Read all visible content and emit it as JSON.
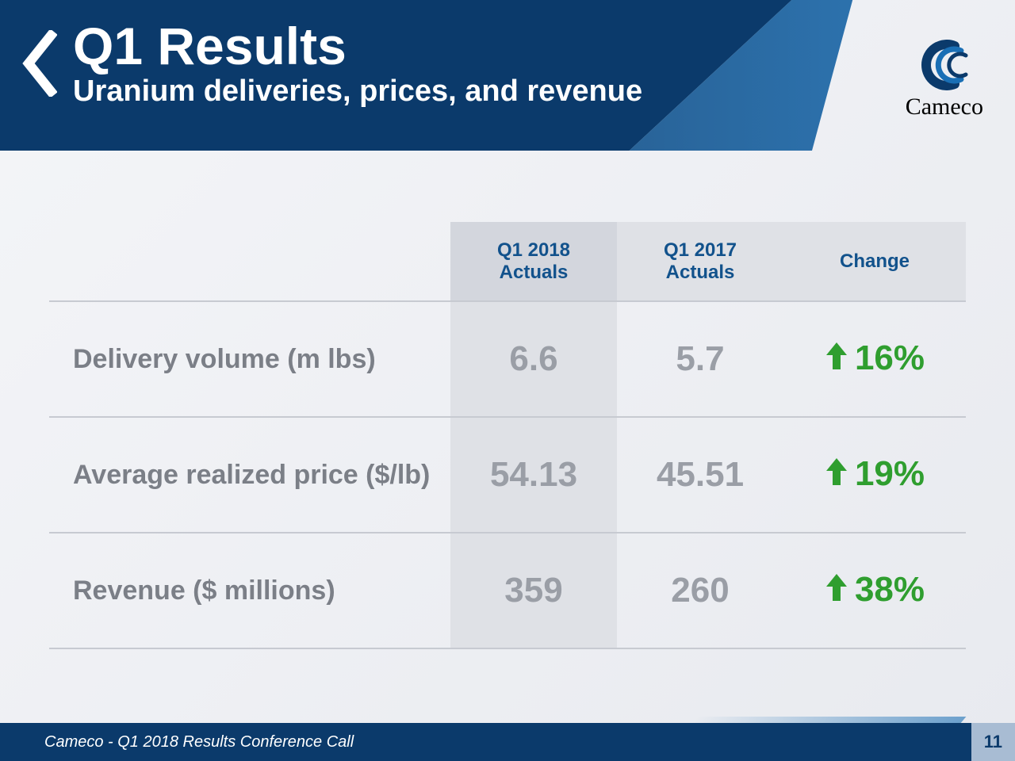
{
  "header": {
    "title": "Q1 Results",
    "subtitle": "Uranium deliveries, prices, and revenue",
    "banner_color": "#0b3a6b",
    "accent_gradient_from": "#12528c",
    "accent_gradient_to": "#1a6fb5"
  },
  "logo": {
    "wordmark": "Cameco",
    "mark_primary_color": "#0b3a6b",
    "mark_accent_color": "#1a6fb5"
  },
  "table": {
    "type": "table",
    "columns": [
      "",
      "Q1 2018\nActuals",
      "Q1 2017\nActuals",
      "Change"
    ],
    "col_header_color": "#12528c",
    "col_header_bg": "#dfe1e6",
    "col_header_fontsize": 24,
    "row_label_color": "#7b7f87",
    "row_label_fontsize": 34,
    "value_color": "#9a9ea6",
    "value_fontsize": 44,
    "change_color": "#2f9e2f",
    "highlight_col_bg": "#dfe1e6",
    "border_color": "#c7cad1",
    "rows": [
      {
        "label": "Delivery volume (m lbs)",
        "q1_2018": "6.6",
        "q1_2017": "5.7",
        "change": "16%",
        "direction": "up"
      },
      {
        "label": "Average realized price ($/lb)",
        "q1_2018": "54.13",
        "q1_2017": "45.51",
        "change": "19%",
        "direction": "up"
      },
      {
        "label": "Revenue ($ millions)",
        "q1_2018": "359",
        "q1_2017": "260",
        "change": "38%",
        "direction": "up"
      }
    ]
  },
  "footer": {
    "text": "Cameco - Q1 2018 Results Conference Call",
    "page_number": "11",
    "bg_color": "#0b3a6b",
    "text_color": "#ffffff"
  }
}
